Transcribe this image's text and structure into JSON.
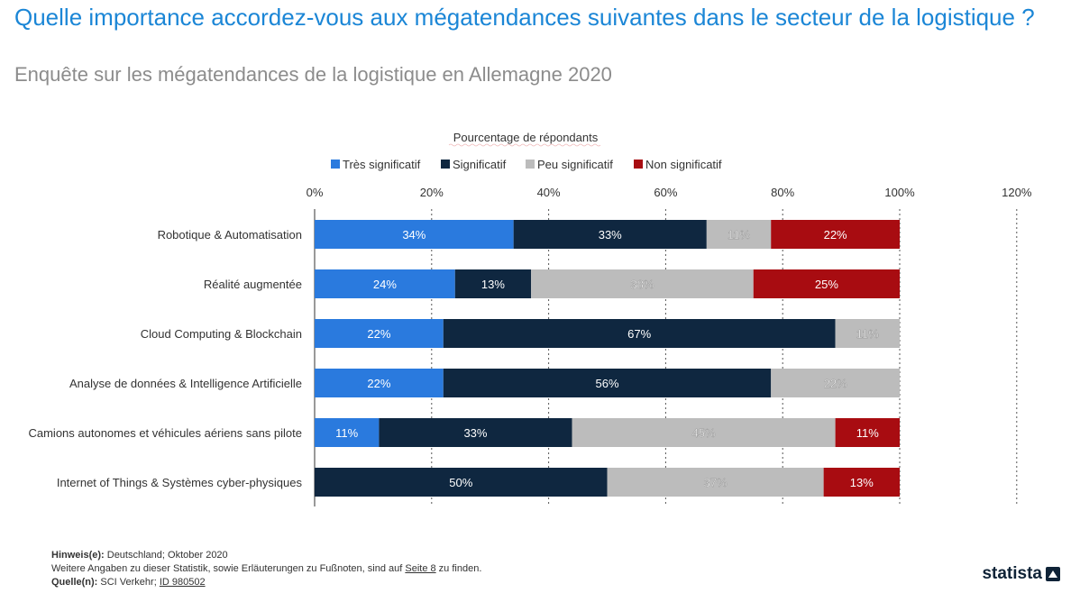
{
  "title": "Quelle importance accordez-vous aux mégatendances suivantes dans le secteur de la logistique ?",
  "subtitle": "Enquête sur les mégatendances de la logistique en Allemagne 2020",
  "chart_data": {
    "type": "bar",
    "orientation": "horizontal-stacked",
    "xlabel": "Pourcentage de répondants",
    "xlim": [
      0,
      120
    ],
    "xticks": [
      "0%",
      "20%",
      "40%",
      "60%",
      "80%",
      "100%",
      "120%"
    ],
    "categories": [
      "Robotique & Automatisation",
      "Réalité augmentée",
      "Cloud Computing & Blockchain",
      "Analyse de données & Intelligence Artificielle",
      "Camions autonomes et véhicules aériens sans pilote",
      "Internet of Things & Systèmes cyber-physiques"
    ],
    "series": [
      {
        "name": "Très significatif",
        "color": "#2a7ade",
        "values": [
          34,
          24,
          22,
          22,
          11,
          0
        ],
        "labels": [
          "34%",
          "24%",
          "22%",
          "22%",
          "11%",
          ""
        ]
      },
      {
        "name": "Significatif",
        "color": "#0f2740",
        "values": [
          33,
          13,
          67,
          56,
          33,
          50
        ],
        "labels": [
          "33%",
          "13%",
          "67%",
          "56%",
          "33%",
          "50%"
        ]
      },
      {
        "name": "Peu significatif",
        "color": "#bcbcbc",
        "values": [
          11,
          38,
          11,
          22,
          45,
          37
        ],
        "labels": [
          "11%",
          "38%",
          "11%",
          "22%",
          "45%",
          "37%"
        ]
      },
      {
        "name": "Non significatif",
        "color": "#a80c11",
        "values": [
          22,
          25,
          0,
          0,
          11,
          13
        ],
        "labels": [
          "22%",
          "25%",
          "",
          "",
          "11%",
          "13%"
        ]
      }
    ],
    "legend": "top",
    "grid": true
  },
  "footer": {
    "note_label": "Hinweis(e):",
    "note_text": "Deutschland; Oktober 2020",
    "more_text": "Weitere Angaben zu dieser Statistik, sowie Erläuterungen zu Fußnoten, sind auf",
    "more_link": "Seite 8",
    "more_tail": "zu finden.",
    "source_label": "Quelle(n):",
    "source_text": "SCI Verkehr;",
    "source_id": "ID 980502"
  },
  "brand": "statista"
}
